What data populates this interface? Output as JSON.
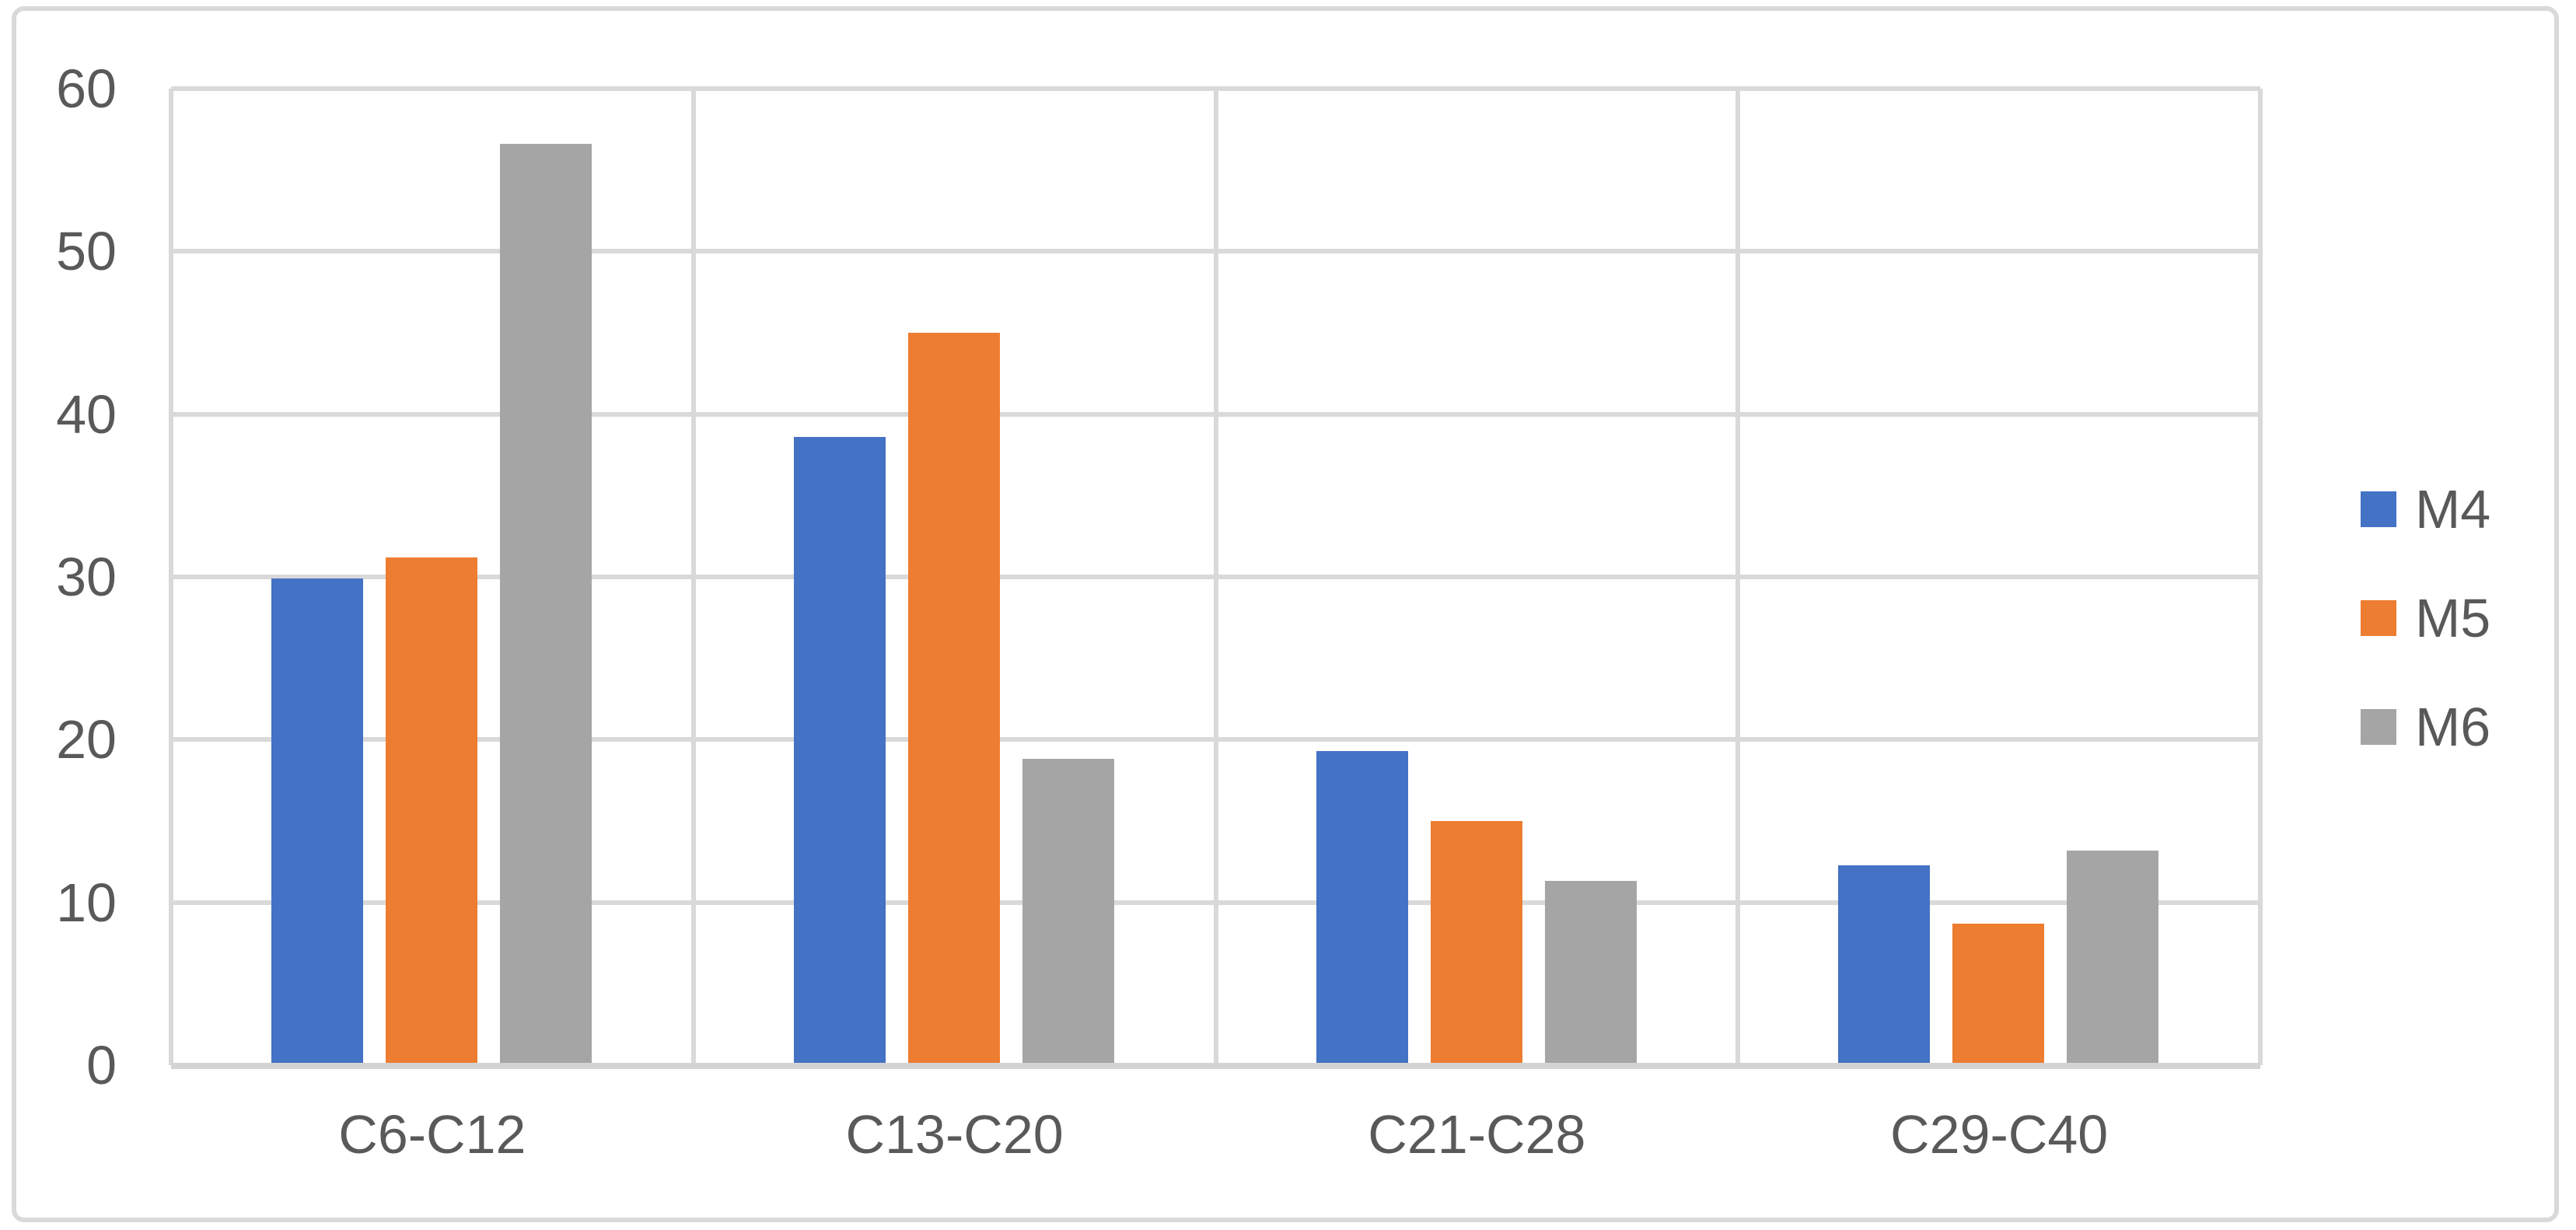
{
  "chart_data": {
    "type": "bar",
    "categories": [
      "C6-C12",
      "C13-C20",
      "C21-C28",
      "C29-C40"
    ],
    "series": [
      {
        "name": "M4",
        "color": "#4472C4",
        "values": [
          29.9,
          38.6,
          19.3,
          12.3
        ]
      },
      {
        "name": "M5",
        "color": "#ED7D31",
        "values": [
          31.2,
          45.0,
          15.0,
          8.7
        ]
      },
      {
        "name": "M6",
        "color": "#A5A5A5",
        "values": [
          56.6,
          18.8,
          11.3,
          13.2
        ]
      }
    ],
    "ylim": [
      0,
      60
    ],
    "yticks": [
      0,
      10,
      20,
      30,
      40,
      50,
      60
    ],
    "grid": true,
    "legend_position": "right",
    "legend_labels": [
      "M4",
      "M5",
      "M6"
    ]
  },
  "colors": {
    "background": "#FFFFFF",
    "gridline": "#D9D9D9",
    "axis_line": "#D4D4D4",
    "figure_border": "#D9D9D9",
    "axis_text": "#595959"
  }
}
